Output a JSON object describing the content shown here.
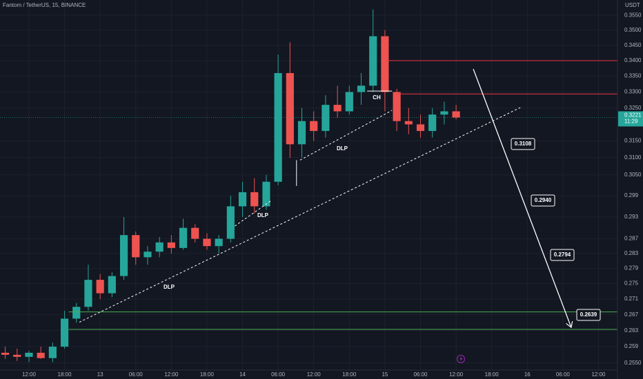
{
  "chart_data": {
    "type": "candlestick",
    "title": "Fantom / TetherUS, 15, BINANCE",
    "currency": "USDT",
    "log_scale": true,
    "grid": true,
    "up_color": "#26a69a",
    "down_color": "#ef5350",
    "x": [
      -4,
      -2,
      0,
      2,
      4,
      6,
      8,
      10,
      12,
      14,
      16,
      18,
      20,
      22,
      24,
      26,
      28,
      30,
      32,
      34,
      36,
      38,
      40,
      42,
      44,
      46,
      48,
      50,
      52,
      54,
      56,
      58,
      60,
      62,
      64,
      66,
      68,
      70,
      72
    ],
    "open": [
      0.2575,
      0.257,
      0.2565,
      0.2575,
      0.2562,
      0.259,
      0.266,
      0.269,
      0.276,
      0.2725,
      0.277,
      0.288,
      0.282,
      0.2835,
      0.286,
      0.2845,
      0.29,
      0.287,
      0.285,
      0.287,
      0.296,
      0.3,
      0.296,
      0.303,
      0.336,
      0.314,
      0.321,
      0.318,
      0.326,
      0.324,
      0.33,
      0.332,
      0.348,
      0.33,
      0.321,
      0.32,
      0.318,
      0.323,
      0.324
    ],
    "high": [
      0.259,
      0.2585,
      0.258,
      0.259,
      0.26,
      0.268,
      0.27,
      0.28,
      0.2775,
      0.278,
      0.293,
      0.289,
      0.285,
      0.2875,
      0.288,
      0.2925,
      0.291,
      0.2885,
      0.288,
      0.299,
      0.303,
      0.304,
      0.305,
      0.342,
      0.346,
      0.325,
      0.324,
      0.329,
      0.332,
      0.332,
      0.336,
      0.357,
      0.35,
      0.331,
      0.325,
      0.323,
      0.325,
      0.327,
      0.326
    ],
    "low": [
      0.256,
      0.2555,
      0.2552,
      0.256,
      0.2552,
      0.2585,
      0.265,
      0.268,
      0.271,
      0.2715,
      0.276,
      0.28,
      0.28,
      0.282,
      0.283,
      0.284,
      0.286,
      0.284,
      0.283,
      0.286,
      0.293,
      0.294,
      0.295,
      0.302,
      0.31,
      0.31,
      0.315,
      0.316,
      0.322,
      0.323,
      0.326,
      0.33,
      0.324,
      0.318,
      0.317,
      0.316,
      0.316,
      0.32,
      0.3215
    ],
    "close": [
      0.257,
      0.2565,
      0.2575,
      0.2562,
      0.259,
      0.266,
      0.269,
      0.276,
      0.2725,
      0.277,
      0.288,
      0.282,
      0.2835,
      0.286,
      0.2845,
      0.29,
      0.287,
      0.285,
      0.287,
      0.296,
      0.3,
      0.296,
      0.303,
      0.336,
      0.314,
      0.321,
      0.318,
      0.326,
      0.324,
      0.33,
      0.332,
      0.348,
      0.33,
      0.321,
      0.32,
      0.318,
      0.323,
      0.324,
      0.3221
    ],
    "last_price": 0.3221,
    "countdown": "11:29",
    "xlim": [
      -4.88,
      99.2
    ],
    "ylim": [
      0.2533,
      0.3602
    ],
    "xticks": [
      {
        "value": 0,
        "label": "12:00"
      },
      {
        "value": 6,
        "label": "18:00"
      },
      {
        "value": 12,
        "label": "13"
      },
      {
        "value": 18,
        "label": "06:00"
      },
      {
        "value": 24,
        "label": "12:00"
      },
      {
        "value": 30,
        "label": "18:00"
      },
      {
        "value": 36,
        "label": "14"
      },
      {
        "value": 42,
        "label": "06:00"
      },
      {
        "value": 48,
        "label": "12:00"
      },
      {
        "value": 54,
        "label": "18:00"
      },
      {
        "value": 60,
        "label": "15"
      },
      {
        "value": 66,
        "label": "06:00"
      },
      {
        "value": 72,
        "label": "12:00"
      },
      {
        "value": 78,
        "label": "18:00"
      },
      {
        "value": 84,
        "label": "16"
      },
      {
        "value": 90,
        "label": "06:00"
      },
      {
        "value": 96,
        "label": "12:00"
      }
    ],
    "yticks": [
      {
        "value": 0.355,
        "label": "0.3550"
      },
      {
        "value": 0.35,
        "label": "0.3500"
      },
      {
        "value": 0.345,
        "label": "0.3450"
      },
      {
        "value": 0.34,
        "label": "0.3400"
      },
      {
        "value": 0.335,
        "label": "0.3350"
      },
      {
        "value": 0.33,
        "label": "0.3300"
      },
      {
        "value": 0.325,
        "label": "0.3250"
      },
      {
        "value": 0.315,
        "label": "0.3150"
      },
      {
        "value": 0.31,
        "label": "0.3100"
      },
      {
        "value": 0.305,
        "label": "0.3050"
      },
      0.299,
      0.293,
      0.287,
      0.283,
      0.279,
      0.275,
      0.271,
      0.267,
      0.263,
      0.259,
      {
        "value": 0.255,
        "label": "0.2550"
      }
    ],
    "levels": [
      {
        "price": 0.34,
        "start": 60.2,
        "color": "#f23645"
      },
      {
        "price": 0.3294,
        "start": 62,
        "color": "#f23645"
      },
      {
        "price": 0.2677,
        "start": 6.7,
        "color": "#4caf50"
      },
      {
        "price": 0.2633,
        "start": 6.7,
        "color": "#4caf50"
      }
    ],
    "trendlines": [
      {
        "x": [
          8.5,
          83.1
        ],
        "y": [
          0.2651,
          0.3254
        ],
        "dashed": true
      },
      {
        "x": [
          34.7,
          41
        ],
        "y": [
          0.2905,
          0.2978
        ],
        "dashed": true
      },
      {
        "x": [
          45.7,
          61.2
        ],
        "y": [
          0.3093,
          0.3243
        ],
        "dashed": true
      },
      {
        "x": [
          45.1,
          45.1
        ],
        "y": [
          0.3018,
          0.3093
        ],
        "dashed": false
      },
      {
        "x": [
          57,
          61.2
        ],
        "y": [
          0.3303,
          0.3303
        ],
        "dashed": false
      },
      {
        "x": [
          74.9,
          91.4
        ],
        "y": [
          0.3373,
          0.2638
        ],
        "dashed": false,
        "arrow": true
      }
    ],
    "labels": [
      "DLP",
      "DLP",
      "DLP",
      "CH"
    ],
    "targets": [
      "0.3108",
      "0.2940",
      "0.2794",
      "0.2639"
    ]
  }
}
